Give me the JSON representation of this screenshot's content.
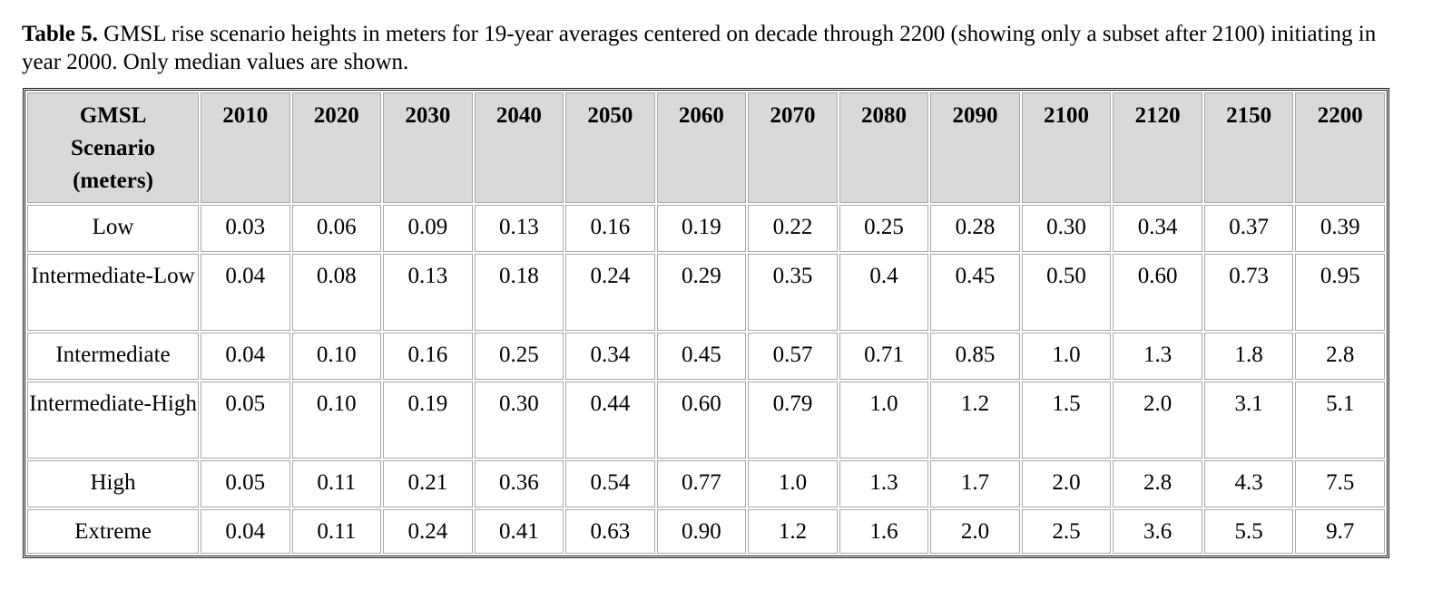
{
  "caption": {
    "label": "Table 5.",
    "text": " GMSL rise scenario heights in meters for 19-year averages centered on decade through 2200 (showing only a subset after 2100) initiating in year 2000. Only median values are shown."
  },
  "table": {
    "header": {
      "scenario_line1": "GMSL",
      "scenario_line2": "Scenario",
      "scenario_line3": "(meters)",
      "years": [
        "2010",
        "2020",
        "2030",
        "2040",
        "2050",
        "2060",
        "2070",
        "2080",
        "2090",
        "2100",
        "2120",
        "2150",
        "2200"
      ]
    },
    "rows": [
      {
        "scenario": "Low",
        "values": [
          "0.03",
          "0.06",
          "0.09",
          "0.13",
          "0.16",
          "0.19",
          "0.22",
          "0.25",
          "0.28",
          "0.30",
          "0.34",
          "0.37",
          "0.39"
        ]
      },
      {
        "scenario": "Intermediate-Low",
        "values": [
          "0.04",
          "0.08",
          "0.13",
          "0.18",
          "0.24",
          "0.29",
          "0.35",
          "0.4",
          "0.45",
          "0.50",
          "0.60",
          "0.73",
          "0.95"
        ]
      },
      {
        "scenario": "Intermediate",
        "values": [
          "0.04",
          "0.10",
          "0.16",
          "0.25",
          "0.34",
          "0.45",
          "0.57",
          "0.71",
          "0.85",
          "1.0",
          "1.3",
          "1.8",
          "2.8"
        ]
      },
      {
        "scenario": "Intermediate-High",
        "values": [
          "0.05",
          "0.10",
          "0.19",
          "0.30",
          "0.44",
          "0.60",
          "0.79",
          "1.0",
          "1.2",
          "1.5",
          "2.0",
          "3.1",
          "5.1"
        ]
      },
      {
        "scenario": "High",
        "values": [
          "0.05",
          "0.11",
          "0.21",
          "0.36",
          "0.54",
          "0.77",
          "1.0",
          "1.3",
          "1.7",
          "2.0",
          "2.8",
          "4.3",
          "7.5"
        ]
      },
      {
        "scenario": "Extreme",
        "values": [
          "0.04",
          "0.11",
          "0.24",
          "0.41",
          "0.63",
          "0.90",
          "1.2",
          "1.6",
          "2.0",
          "2.5",
          "3.6",
          "5.5",
          "9.7"
        ]
      }
    ]
  }
}
